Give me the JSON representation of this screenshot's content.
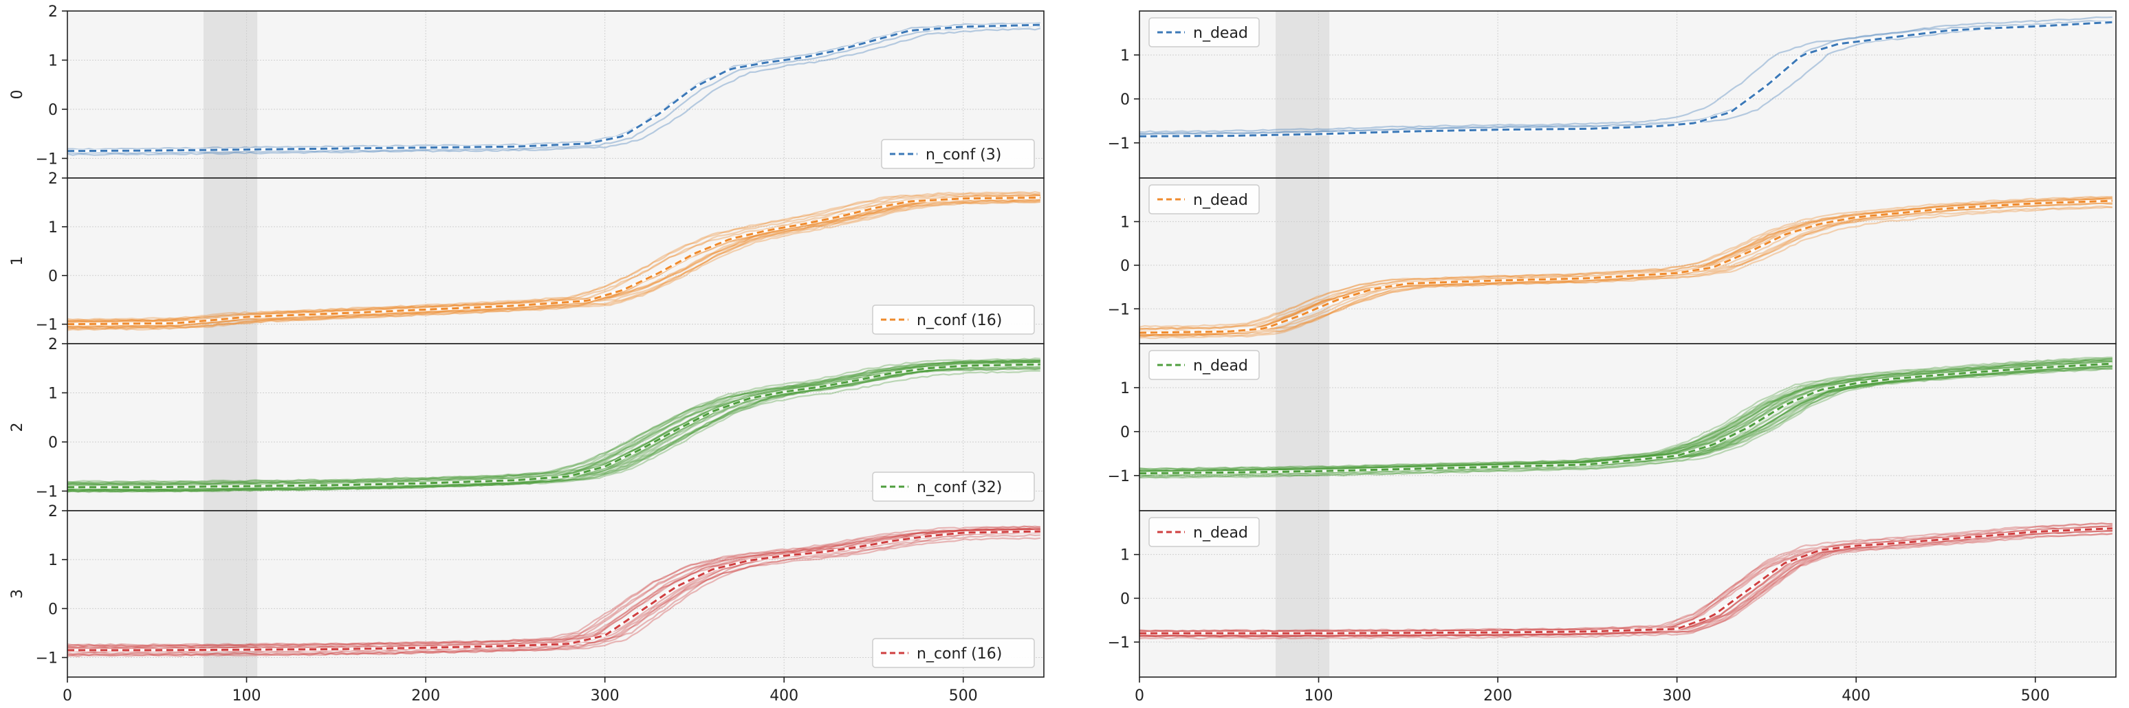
{
  "figure": {
    "background": "#ffffff"
  },
  "chart_data": {
    "type": "line",
    "layout": "4 rows x 2 columns, shared x axis per column, stacked panels",
    "xlim": [
      0,
      545
    ],
    "x_ticks": [
      0,
      100,
      200,
      300,
      400,
      500
    ],
    "x_tick_labels": [
      "0",
      "100",
      "200",
      "300",
      "400",
      "500"
    ],
    "grid": true,
    "panel_background": "#f5f5f5",
    "shaded_x_span": [
      76,
      106
    ],
    "shade_color": "#e2e2e2",
    "rows": [
      {
        "label": "0",
        "color": "#3b78b7",
        "left": {
          "ylim": [
            -1.4,
            2.0
          ],
          "y_ticks": [
            -1,
            0,
            1,
            2
          ],
          "legend": "n_conf (3)",
          "legend_position": "lower right",
          "member_count": 3,
          "mean_series": {
            "x": [
              0,
              50,
              100,
              150,
              200,
              250,
              290,
              310,
              330,
              350,
              370,
              390,
              410,
              430,
              450,
              470,
              500,
              545
            ],
            "y": [
              -0.85,
              -0.84,
              -0.82,
              -0.8,
              -0.78,
              -0.76,
              -0.7,
              -0.55,
              -0.1,
              0.45,
              0.82,
              0.95,
              1.05,
              1.2,
              1.4,
              1.6,
              1.68,
              1.72
            ]
          }
        },
        "right": {
          "ylim": [
            -1.8,
            2.0
          ],
          "y_ticks": [
            -1,
            0,
            1
          ],
          "legend": "n_dead",
          "legend_position": "upper left",
          "member_count": 3,
          "mean_series": {
            "x": [
              0,
              50,
              100,
              150,
              200,
              250,
              290,
              310,
              330,
              350,
              370,
              390,
              410,
              430,
              450,
              470,
              500,
              545
            ],
            "y": [
              -0.85,
              -0.84,
              -0.8,
              -0.74,
              -0.7,
              -0.68,
              -0.62,
              -0.55,
              -0.3,
              0.3,
              1.0,
              1.25,
              1.35,
              1.45,
              1.55,
              1.6,
              1.65,
              1.75
            ]
          }
        }
      },
      {
        "label": "1",
        "color": "#ef8a2c",
        "left": {
          "ylim": [
            -1.4,
            2.0
          ],
          "y_ticks": [
            -1,
            0,
            1,
            2
          ],
          "legend": "n_conf (16)",
          "legend_position": "lower right",
          "member_count": 16,
          "mean_series": {
            "x": [
              0,
              60,
              80,
              100,
              150,
              200,
              250,
              290,
              310,
              330,
              350,
              370,
              390,
              410,
              430,
              450,
              470,
              500,
              545
            ],
            "y": [
              -1.0,
              -0.98,
              -0.92,
              -0.85,
              -0.78,
              -0.7,
              -0.62,
              -0.52,
              -0.3,
              0.05,
              0.45,
              0.75,
              0.92,
              1.05,
              1.2,
              1.38,
              1.52,
              1.58,
              1.6
            ]
          }
        },
        "right": {
          "ylim": [
            -1.8,
            2.0
          ],
          "y_ticks": [
            -1,
            0,
            1
          ],
          "legend": "n_dead",
          "legend_position": "upper left",
          "member_count": 16,
          "mean_series": {
            "x": [
              0,
              50,
              70,
              90,
              110,
              130,
              150,
              200,
              250,
              300,
              320,
              340,
              360,
              380,
              400,
              450,
              500,
              545
            ],
            "y": [
              -1.55,
              -1.52,
              -1.45,
              -1.15,
              -0.8,
              -0.55,
              -0.42,
              -0.35,
              -0.3,
              -0.18,
              -0.05,
              0.3,
              0.7,
              0.95,
              1.1,
              1.3,
              1.42,
              1.48
            ]
          }
        }
      },
      {
        "label": "2",
        "color": "#4e9e3d",
        "left": {
          "ylim": [
            -1.4,
            2.0
          ],
          "y_ticks": [
            -1,
            0,
            1,
            2
          ],
          "legend": "n_conf (32)",
          "legend_position": "lower right",
          "member_count": 32,
          "mean_series": {
            "x": [
              0,
              50,
              100,
              150,
              200,
              250,
              280,
              300,
              320,
              340,
              360,
              380,
              400,
              420,
              440,
              460,
              480,
              500,
              545
            ],
            "y": [
              -0.92,
              -0.92,
              -0.9,
              -0.88,
              -0.84,
              -0.78,
              -0.7,
              -0.5,
              -0.15,
              0.25,
              0.62,
              0.88,
              1.02,
              1.12,
              1.25,
              1.4,
              1.5,
              1.55,
              1.58
            ]
          }
        },
        "right": {
          "ylim": [
            -1.8,
            2.0
          ],
          "y_ticks": [
            -1,
            0,
            1
          ],
          "legend": "n_dead",
          "legend_position": "upper left",
          "member_count": 32,
          "mean_series": {
            "x": [
              0,
              50,
              100,
              150,
              200,
              250,
              300,
              320,
              340,
              360,
              380,
              400,
              420,
              450,
              500,
              545
            ],
            "y": [
              -0.95,
              -0.93,
              -0.9,
              -0.85,
              -0.8,
              -0.75,
              -0.55,
              -0.3,
              0.1,
              0.6,
              0.95,
              1.1,
              1.2,
              1.3,
              1.45,
              1.55
            ]
          }
        }
      },
      {
        "label": "3",
        "color": "#cf3e3f",
        "left": {
          "ylim": [
            -1.4,
            2.0
          ],
          "y_ticks": [
            -1,
            0,
            1,
            2
          ],
          "legend": "n_conf (16)",
          "legend_position": "lower right",
          "member_count": 16,
          "mean_series": {
            "x": [
              0,
              50,
              100,
              150,
              200,
              250,
              280,
              300,
              320,
              340,
              360,
              380,
              400,
              420,
              440,
              460,
              480,
              500,
              545
            ],
            "y": [
              -0.85,
              -0.85,
              -0.84,
              -0.83,
              -0.8,
              -0.76,
              -0.72,
              -0.55,
              -0.05,
              0.45,
              0.8,
              0.98,
              1.08,
              1.15,
              1.25,
              1.38,
              1.48,
              1.55,
              1.58
            ]
          }
        },
        "right": {
          "ylim": [
            -1.8,
            2.0
          ],
          "y_ticks": [
            -1,
            0,
            1
          ],
          "legend": "n_dead",
          "legend_position": "upper left",
          "member_count": 16,
          "mean_series": {
            "x": [
              0,
              50,
              100,
              150,
              200,
              250,
              300,
              320,
              340,
              360,
              380,
              400,
              420,
              450,
              480,
              500,
              545
            ],
            "y": [
              -0.8,
              -0.8,
              -0.8,
              -0.79,
              -0.78,
              -0.76,
              -0.7,
              -0.4,
              0.2,
              0.8,
              1.1,
              1.2,
              1.25,
              1.35,
              1.45,
              1.52,
              1.6
            ]
          }
        }
      }
    ]
  }
}
